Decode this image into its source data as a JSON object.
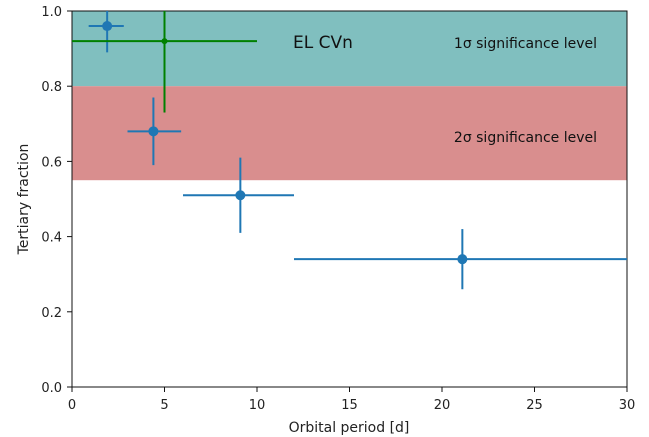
{
  "chart_data": {
    "type": "scatter",
    "xlabel": "Orbital period [d]",
    "ylabel": "Tertiary fraction",
    "xlim": [
      0,
      30
    ],
    "ylim": [
      0.0,
      1.0
    ],
    "xticks": [
      "0",
      "5",
      "10",
      "15",
      "20",
      "25",
      "30"
    ],
    "yticks": [
      "0.0",
      "0.2",
      "0.4",
      "0.6",
      "0.8",
      "1.0"
    ],
    "grid": false,
    "bands": [
      {
        "label": "1σ significance level",
        "ymin": 0.8,
        "ymax": 1.0,
        "color": "#80bfbf"
      },
      {
        "label": "2σ significance level",
        "ymin": 0.55,
        "ymax": 0.8,
        "color": "#d98e8e"
      }
    ],
    "series": [
      {
        "color": "#1f77b4",
        "points": [
          {
            "x": 1.9,
            "y": 0.96,
            "xerr": [
              1.0,
              0.9
            ],
            "yerr": [
              0.07,
              0.04
            ]
          },
          {
            "x": 4.4,
            "y": 0.68,
            "xerr": [
              1.4,
              1.5
            ],
            "yerr": [
              0.09,
              0.09
            ]
          },
          {
            "x": 9.1,
            "y": 0.51,
            "xerr": [
              3.1,
              2.9
            ],
            "yerr": [
              0.1,
              0.1
            ]
          },
          {
            "x": 21.1,
            "y": 0.34,
            "xerr": [
              9.1,
              8.9
            ],
            "yerr": [
              0.08,
              0.08
            ]
          }
        ]
      },
      {
        "name": "EL CVn",
        "color": "#008000",
        "points": [
          {
            "x": 5.0,
            "y": 0.92,
            "xerr": [
              5.0,
              5.0
            ],
            "yerr": [
              0.19,
              0.08
            ]
          }
        ]
      }
    ]
  }
}
